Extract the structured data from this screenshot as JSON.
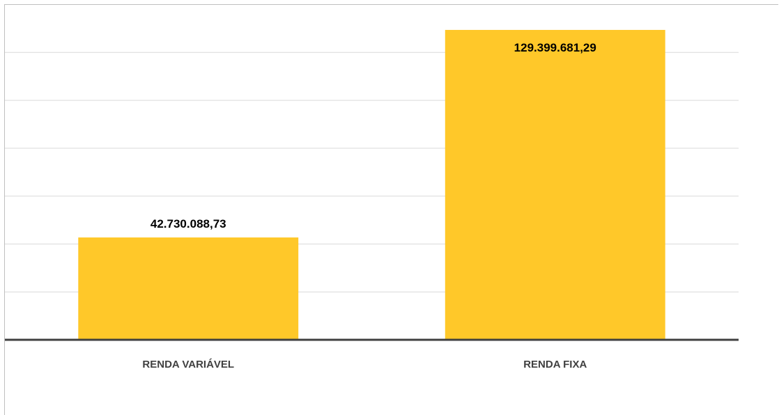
{
  "chart_data": {
    "type": "bar",
    "categories": [
      "RENDA VARIÁVEL",
      "RENDA FIXA"
    ],
    "values": [
      42730088.73,
      129399681.29
    ],
    "value_labels": [
      "42.730.088,73",
      "129.399.681,29"
    ],
    "title": "",
    "xlabel": "",
    "ylabel": "",
    "ylim": [
      0,
      140000000
    ],
    "y_gridline_step": 20000000,
    "grid": true,
    "y_tick_labels_visible": false,
    "legend": "none",
    "bar_color": "#FFC829",
    "gridline_color": "#d9d9d9",
    "axis_color": "#404040"
  }
}
